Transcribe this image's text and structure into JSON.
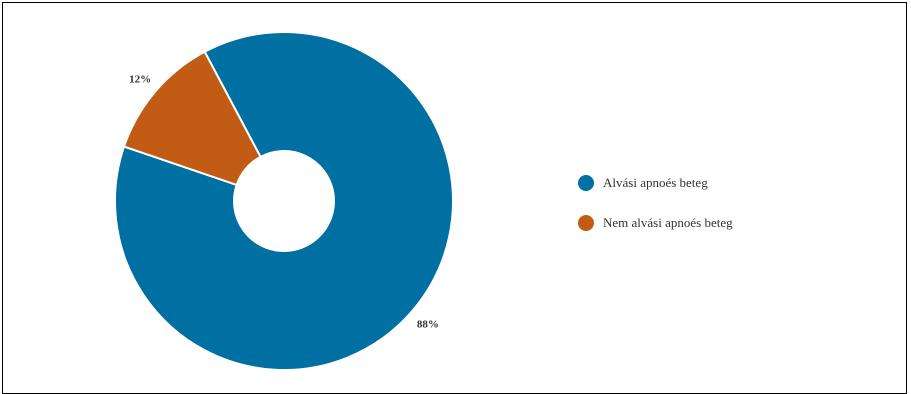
{
  "chart_data": {
    "type": "pie",
    "donut": true,
    "categories": [
      "Alvási apnoés beteg",
      "Nem alvási apnoés beteg"
    ],
    "values": [
      88,
      12
    ],
    "labels": [
      "88%",
      "12%"
    ],
    "colors": [
      "#0070a3",
      "#c25b14"
    ],
    "title": "",
    "legend_position": "right"
  }
}
